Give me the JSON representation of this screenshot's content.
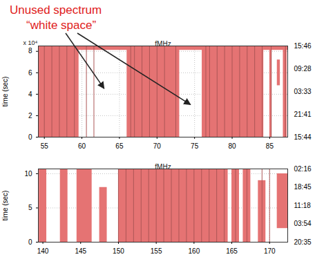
{
  "chart_data": [
    {
      "type": "occupancy",
      "title": "fMHz",
      "y_label": "time (sec)",
      "y_multiplier": "x 10⁴",
      "xlim": [
        54.2,
        87.4
      ],
      "xticks": [
        55,
        60,
        65,
        70,
        75,
        80,
        85
      ],
      "ylim": [
        0,
        8.5
      ],
      "yticks": [
        0,
        2,
        4,
        6,
        8
      ],
      "y2lim": [
        0,
        8.5
      ],
      "y2ticks": [
        {
          "value": 8.5,
          "label": "15:46"
        },
        {
          "value": 6.375,
          "label": "09:28"
        },
        {
          "value": 4.25,
          "label": "03:33"
        },
        {
          "value": 2.125,
          "label": "21:41"
        },
        {
          "value": 0,
          "label": "15:44"
        }
      ],
      "grid": true,
      "color": "#e57373",
      "bands": [
        {
          "x1": 54.2,
          "x2": 59.6,
          "y1": 0,
          "y2": 8.5
        },
        {
          "x1": 66.0,
          "x2": 73.0,
          "y1": 0,
          "y2": 8.5
        },
        {
          "x1": 76.0,
          "x2": 84.2,
          "y1": 0,
          "y2": 8.5
        },
        {
          "x1": 85.0,
          "x2": 85.3,
          "y1": 0,
          "y2": 8.5
        },
        {
          "x1": 86.0,
          "x2": 86.4,
          "y1": 4.8,
          "y2": 7.2
        },
        {
          "x1": 86.8,
          "x2": 87.3,
          "y1": 0,
          "y2": 8.5
        },
        {
          "x1": 54.2,
          "x2": 87.4,
          "y1": 8.1,
          "y2": 8.5
        }
      ],
      "lines": [
        55,
        56,
        57,
        58,
        59,
        60.6,
        61.6,
        66.5,
        67,
        68,
        69,
        70,
        71,
        72.5,
        76.5,
        77,
        78,
        79,
        80,
        81,
        82,
        83,
        84,
        85.2,
        87.1
      ],
      "annotation": {
        "lines": [
          "Unused spectrum",
          "“white space”"
        ],
        "color": "#e02020",
        "points": [
          {
            "x": 63,
            "y": 4.5
          },
          {
            "x": 74.5,
            "y": 3
          }
        ]
      }
    },
    {
      "type": "occupancy",
      "title": "fMHz",
      "y_label": "time (sec)",
      "xlim": [
        139.4,
        172.4
      ],
      "xticks": [
        140,
        145,
        150,
        155,
        160,
        165,
        170
      ],
      "ylim": [
        0,
        10.7
      ],
      "yticks": [
        0,
        5,
        10
      ],
      "y2lim": [
        0,
        10.7
      ],
      "y2ticks": [
        {
          "value": 10.7,
          "label": "02:16"
        },
        {
          "value": 8.025,
          "label": "18:45"
        },
        {
          "value": 5.35,
          "label": "11:18"
        },
        {
          "value": 2.675,
          "label": "03:54"
        },
        {
          "value": 0,
          "label": "20:35"
        }
      ],
      "grid": true,
      "color": "#e57373",
      "bands": [
        {
          "x1": 139.5,
          "x2": 140.5,
          "y1": 0,
          "y2": 10.7
        },
        {
          "x1": 142.3,
          "x2": 143.3,
          "y1": 0,
          "y2": 10.7
        },
        {
          "x1": 144.5,
          "x2": 146.5,
          "y1": 0,
          "y2": 10.7
        },
        {
          "x1": 147.5,
          "x2": 148.5,
          "y1": 0,
          "y2": 8
        },
        {
          "x1": 150.0,
          "x2": 164.5,
          "y1": 0,
          "y2": 10.7
        },
        {
          "x1": 165.0,
          "x2": 166.0,
          "y1": 0,
          "y2": 10.7
        },
        {
          "x1": 166.5,
          "x2": 167.5,
          "y1": 0,
          "y2": 10.7
        },
        {
          "x1": 168.5,
          "x2": 169.5,
          "y1": 0,
          "y2": 9
        },
        {
          "x1": 171.0,
          "x2": 172.4,
          "y1": 2,
          "y2": 10
        }
      ],
      "lines": [
        150,
        151,
        152,
        153,
        154,
        155,
        156,
        157,
        158,
        159,
        160,
        161,
        162,
        163,
        164,
        165.5,
        167,
        169,
        170
      ]
    }
  ]
}
